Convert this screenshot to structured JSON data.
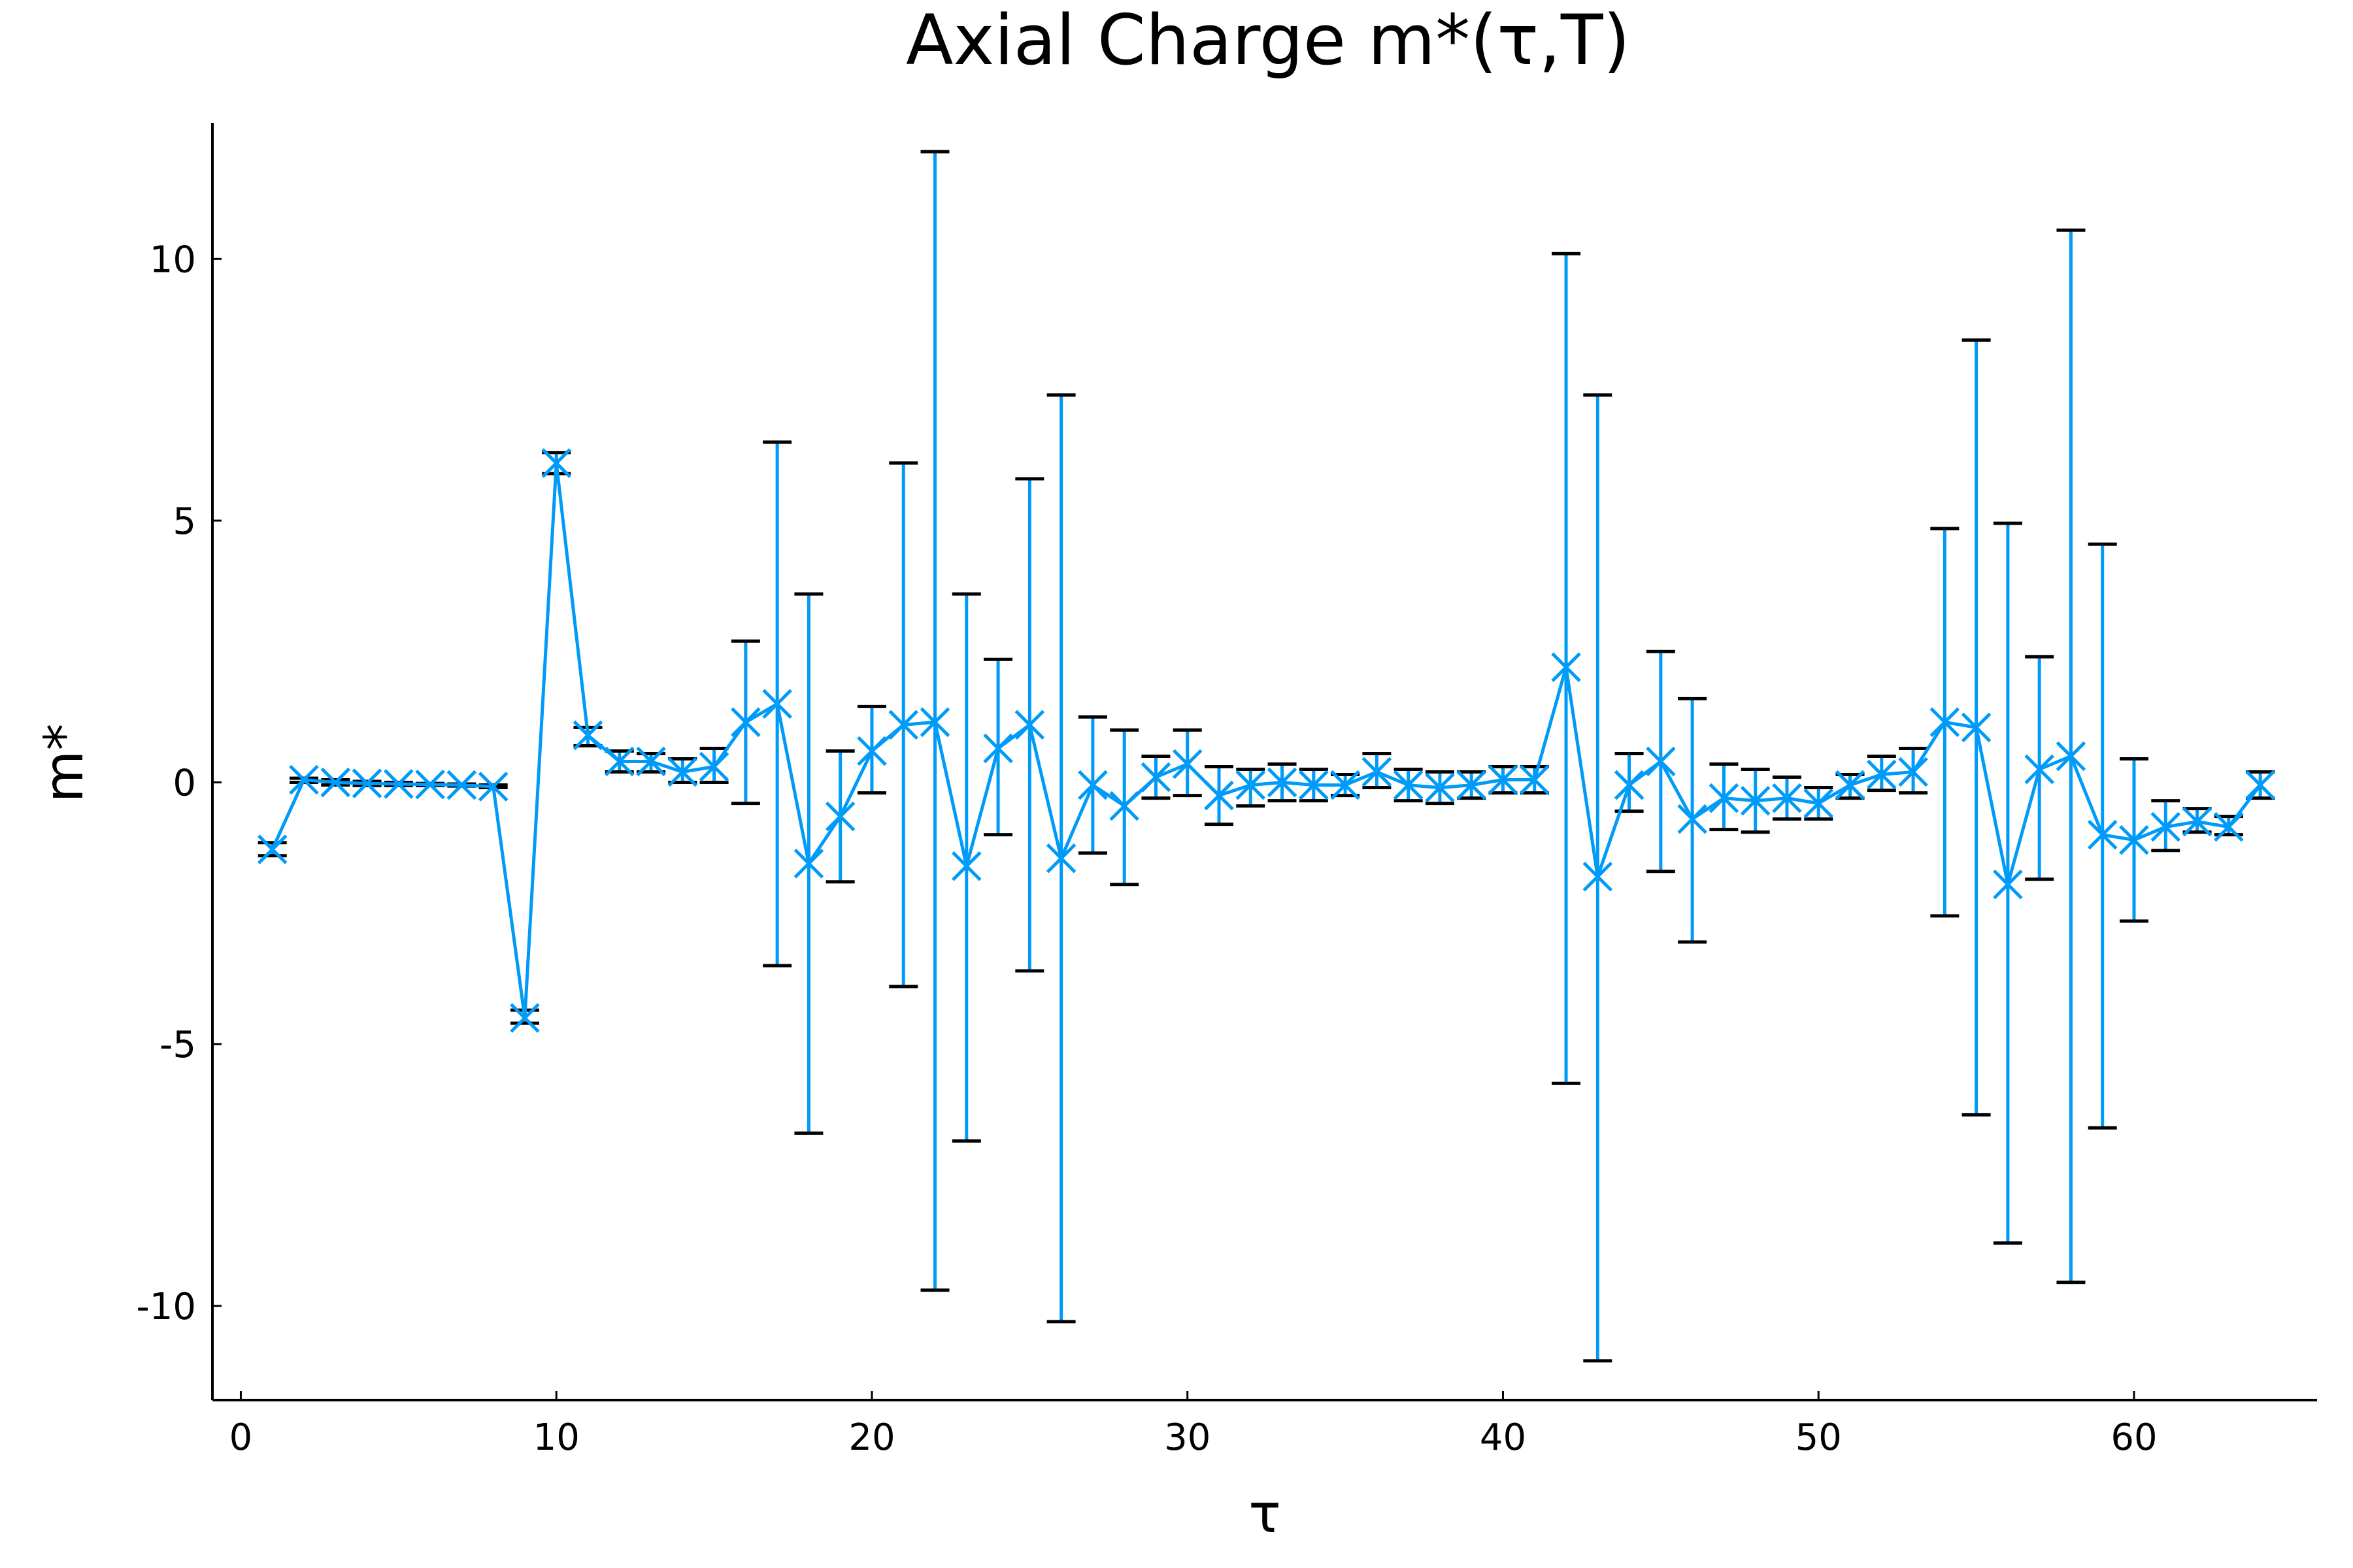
{
  "chart_data": {
    "type": "scatter",
    "title": "Axial Charge m*(τ,T)",
    "xlabel": "τ",
    "ylabel": "m*",
    "xlim": [
      -0.9,
      65.8
    ],
    "ylim": [
      -11.8,
      12.6
    ],
    "xticks": [
      0,
      10,
      20,
      30,
      40,
      50,
      60
    ],
    "xtick_labels": [
      "0",
      "10",
      "20",
      "30",
      "40",
      "50",
      "60"
    ],
    "yticks": [
      -10,
      -5,
      0,
      5,
      10
    ],
    "ytick_labels": [
      "-10",
      "-5",
      "0",
      "5",
      "10"
    ],
    "grid": false,
    "legend": "none",
    "series": [
      {
        "color": "#009af9",
        "errorbar_cap_color": "#000000",
        "marker": "x",
        "x": [
          1,
          2,
          3,
          4,
          5,
          6,
          7,
          8,
          9,
          10,
          11,
          12,
          13,
          14,
          15,
          16,
          17,
          18,
          19,
          20,
          21,
          22,
          23,
          24,
          25,
          26,
          27,
          28,
          29,
          30,
          31,
          32,
          33,
          34,
          35,
          36,
          37,
          38,
          39,
          40,
          41,
          42,
          43,
          44,
          45,
          46,
          47,
          48,
          49,
          50,
          51,
          52,
          53,
          54,
          55,
          56,
          57,
          58,
          59,
          60,
          61,
          62,
          63,
          64
        ],
        "y": [
          -1.28,
          0.05,
          0.0,
          -0.02,
          -0.03,
          -0.04,
          -0.05,
          -0.08,
          -4.5,
          6.1,
          0.9,
          0.4,
          0.4,
          0.2,
          0.3,
          1.15,
          1.5,
          -1.55,
          -0.65,
          0.6,
          1.1,
          1.15,
          -1.6,
          0.65,
          1.1,
          -1.45,
          -0.05,
          -0.45,
          0.1,
          0.35,
          -0.25,
          -0.05,
          0.0,
          -0.05,
          -0.05,
          0.2,
          -0.05,
          -0.1,
          -0.05,
          0.05,
          0.05,
          2.2,
          -1.8,
          -0.05,
          0.4,
          -0.7,
          -0.3,
          -0.35,
          -0.3,
          -0.4,
          -0.05,
          0.15,
          0.2,
          1.15,
          1.05,
          -1.95,
          0.25,
          0.5,
          -1.0,
          -1.1,
          -0.85,
          -0.75,
          -0.85,
          -0.05
        ],
        "err_low": [
          -1.4,
          0.0,
          -0.05,
          -0.06,
          -0.06,
          -0.06,
          -0.07,
          -0.1,
          -4.6,
          5.9,
          0.7,
          0.2,
          0.2,
          0.0,
          0.0,
          -0.4,
          -3.5,
          -6.7,
          -1.9,
          -0.2,
          -3.9,
          -9.7,
          -6.85,
          -1.0,
          -3.6,
          -10.3,
          -1.35,
          -1.95,
          -0.3,
          -0.25,
          -0.8,
          -0.45,
          -0.35,
          -0.35,
          -0.25,
          -0.1,
          -0.35,
          -0.4,
          -0.3,
          -0.2,
          -0.2,
          -5.75,
          -11.05,
          -0.55,
          -1.7,
          -3.05,
          -0.9,
          -0.95,
          -0.7,
          -0.7,
          -0.3,
          -0.15,
          -0.2,
          -2.55,
          -6.35,
          -8.8,
          -1.85,
          -9.55,
          -6.6,
          -2.65,
          -1.3,
          -0.95,
          -1.0,
          -0.3
        ],
        "err_high": [
          -1.15,
          0.08,
          0.05,
          0.02,
          0.0,
          -0.02,
          -0.03,
          -0.05,
          -4.35,
          6.3,
          1.05,
          0.6,
          0.55,
          0.45,
          0.65,
          2.7,
          6.5,
          3.6,
          0.6,
          1.45,
          6.1,
          12.05,
          3.6,
          2.35,
          5.8,
          7.4,
          1.25,
          1.0,
          0.5,
          1.0,
          0.3,
          0.25,
          0.35,
          0.25,
          0.15,
          0.55,
          0.25,
          0.2,
          0.2,
          0.3,
          0.3,
          10.1,
          7.4,
          0.55,
          2.5,
          1.6,
          0.35,
          0.25,
          0.1,
          -0.1,
          0.15,
          0.5,
          0.65,
          4.85,
          8.45,
          4.95,
          2.4,
          10.55,
          4.55,
          0.45,
          -0.35,
          -0.5,
          -0.65,
          0.2
        ]
      }
    ]
  }
}
